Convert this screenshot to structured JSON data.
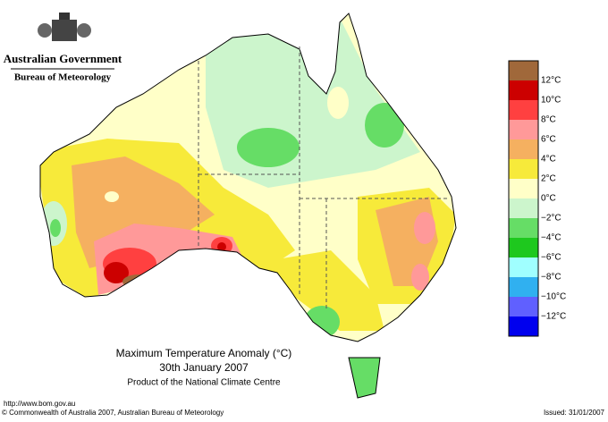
{
  "header": {
    "agency": "Australian Government",
    "bureau": "Bureau of Meteorology"
  },
  "map": {
    "title": "Maximum Temperature Anomaly (°C)",
    "date": "30th January 2007",
    "credit": "Product of the National Climate Centre"
  },
  "legend": {
    "colors": [
      "#a0683a",
      "#cc0000",
      "#ff4040",
      "#ff9999",
      "#f5b060",
      "#f7ea3a",
      "#ffffc8",
      "#ccf5cc",
      "#66dd66",
      "#1ec81e",
      "#a0ffff",
      "#30b0f0",
      "#6060ff",
      "#0000ee"
    ],
    "labels": [
      "12°C",
      "10°C",
      "8°C",
      "6°C",
      "4°C",
      "2°C",
      "0°C",
      "−2°C",
      "−4°C",
      "−6°C",
      "−8°C",
      "−10°C",
      "−12°C"
    ]
  },
  "footer": {
    "url": "http://www.bom.gov.au",
    "copyright": "© Commonwealth of Australia 2007, Australian Bureau of Meteorology",
    "issued": "Issued: 31/01/2007"
  }
}
